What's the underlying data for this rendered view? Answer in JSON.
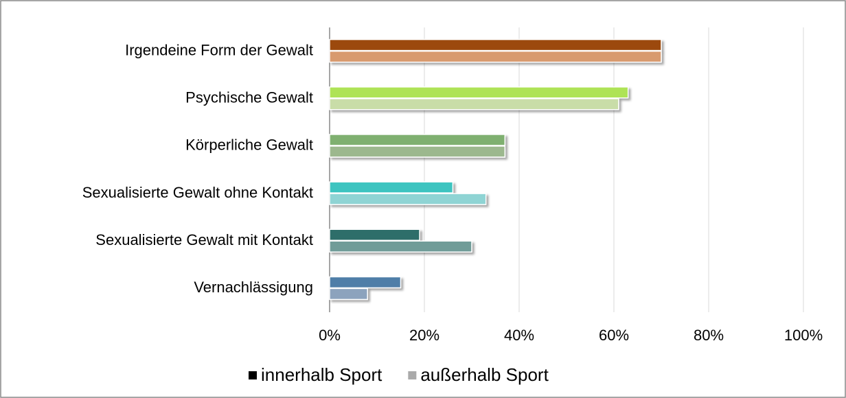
{
  "chart_data": {
    "type": "barh",
    "categories": [
      "Irgendeine Form der Gewalt",
      "Psychische Gewalt",
      "Körperliche Gewalt",
      "Sexualisierte Gewalt ohne Kontakt",
      "Sexualisierte Gewalt mit Kontakt",
      "Vernachlässigung"
    ],
    "series": [
      {
        "name": "innerhalb Sport",
        "color": "#000000",
        "colors": [
          "#9c4a0a",
          "#aee356",
          "#7fb06f",
          "#3cc4c0",
          "#2e6e6a",
          "#4f7ea8"
        ],
        "values": [
          70,
          63,
          37,
          26,
          19,
          15
        ]
      },
      {
        "name": "außerhalb Sport",
        "color": "#aaaaaa",
        "colors": [
          "#d89a6e",
          "#c9dda8",
          "#9cb88e",
          "#8fd4d4",
          "#6f9c98",
          "#8ca3bd"
        ],
        "values": [
          70,
          61,
          37,
          33,
          30,
          8
        ]
      }
    ],
    "xlim": [
      0,
      100
    ],
    "xticks": [
      {
        "value": 0,
        "label": "0%"
      },
      {
        "value": 20,
        "label": "20%"
      },
      {
        "value": 40,
        "label": "40%"
      },
      {
        "value": 60,
        "label": "60%"
      },
      {
        "value": 80,
        "label": "80%"
      },
      {
        "value": 100,
        "label": "100%"
      }
    ],
    "grid": true,
    "legend": "bottom"
  }
}
